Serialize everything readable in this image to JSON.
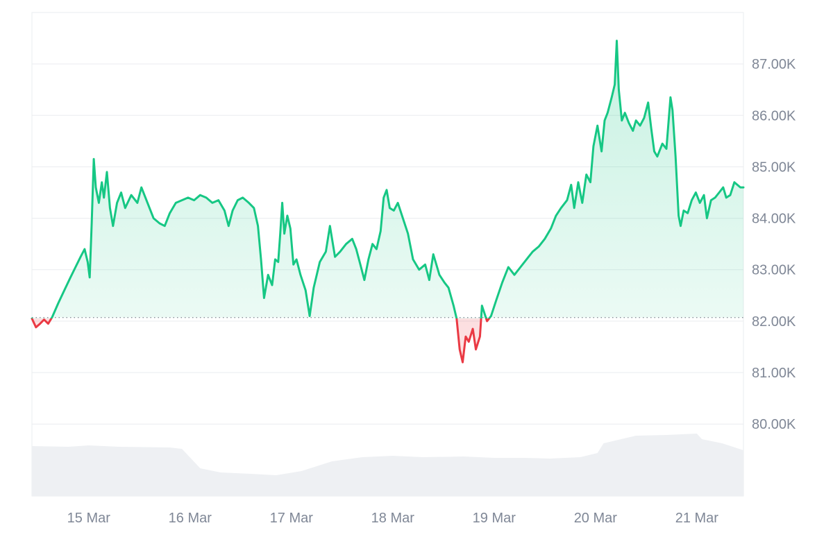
{
  "chart_data": {
    "type": "area",
    "title": "",
    "xlabel": "",
    "ylabel": "",
    "x_tick_labels": [
      "15 Mar",
      "16 Mar",
      "17 Mar",
      "18 Mar",
      "19 Mar",
      "20 Mar",
      "21 Mar"
    ],
    "y_tick_labels": [
      "80.00K",
      "81.00K",
      "82.00K",
      "83.00K",
      "84.00K",
      "85.00K",
      "86.00K",
      "87.00K"
    ],
    "y_ticks": [
      80000,
      81000,
      82000,
      83000,
      84000,
      85000,
      86000,
      87000
    ],
    "ylim": [
      78600,
      88000
    ],
    "xlim": [
      14.44,
      21.46
    ],
    "baseline": 82070,
    "grid": true,
    "colors": {
      "up_line": "#16c784",
      "down_line": "#ea3943",
      "up_fill": "#16c784",
      "down_fill": "#ea3943",
      "volume_fill": "#eef0f3",
      "grid": "#eaecef",
      "baseline_dots": "#8a8f99"
    },
    "series": [
      {
        "values": [
          [
            14.44,
            82050
          ],
          [
            14.48,
            81880
          ],
          [
            14.52,
            81950
          ],
          [
            14.56,
            82030
          ],
          [
            14.6,
            81950
          ],
          [
            14.64,
            82080
          ],
          [
            14.7,
            82350
          ],
          [
            14.76,
            82600
          ],
          [
            14.82,
            82850
          ],
          [
            14.87,
            83050
          ],
          [
            14.92,
            83250
          ],
          [
            14.96,
            83400
          ],
          [
            14.99,
            83150
          ],
          [
            15.01,
            82850
          ],
          [
            15.03,
            83900
          ],
          [
            15.05,
            85150
          ],
          [
            15.07,
            84600
          ],
          [
            15.1,
            84300
          ],
          [
            15.13,
            84700
          ],
          [
            15.15,
            84400
          ],
          [
            15.18,
            84900
          ],
          [
            15.21,
            84200
          ],
          [
            15.24,
            83850
          ],
          [
            15.28,
            84300
          ],
          [
            15.32,
            84500
          ],
          [
            15.36,
            84200
          ],
          [
            15.42,
            84450
          ],
          [
            15.48,
            84300
          ],
          [
            15.52,
            84600
          ],
          [
            15.58,
            84300
          ],
          [
            15.64,
            84000
          ],
          [
            15.7,
            83900
          ],
          [
            15.75,
            83850
          ],
          [
            15.8,
            84100
          ],
          [
            15.86,
            84300
          ],
          [
            15.92,
            84350
          ],
          [
            15.98,
            84400
          ],
          [
            16.04,
            84350
          ],
          [
            16.1,
            84450
          ],
          [
            16.16,
            84400
          ],
          [
            16.22,
            84300
          ],
          [
            16.28,
            84350
          ],
          [
            16.34,
            84150
          ],
          [
            16.38,
            83850
          ],
          [
            16.42,
            84150
          ],
          [
            16.47,
            84350
          ],
          [
            16.52,
            84400
          ],
          [
            16.58,
            84300
          ],
          [
            16.63,
            84200
          ],
          [
            16.67,
            83850
          ],
          [
            16.7,
            83200
          ],
          [
            16.73,
            82450
          ],
          [
            16.77,
            82900
          ],
          [
            16.81,
            82700
          ],
          [
            16.84,
            83200
          ],
          [
            16.87,
            83150
          ],
          [
            16.89,
            83700
          ],
          [
            16.91,
            84300
          ],
          [
            16.93,
            83700
          ],
          [
            16.96,
            84050
          ],
          [
            16.99,
            83800
          ],
          [
            17.02,
            83100
          ],
          [
            17.05,
            83200
          ],
          [
            17.09,
            82900
          ],
          [
            17.14,
            82600
          ],
          [
            17.18,
            82100
          ],
          [
            17.22,
            82650
          ],
          [
            17.28,
            83150
          ],
          [
            17.34,
            83350
          ],
          [
            17.38,
            83850
          ],
          [
            17.43,
            83250
          ],
          [
            17.48,
            83350
          ],
          [
            17.54,
            83500
          ],
          [
            17.6,
            83600
          ],
          [
            17.64,
            83400
          ],
          [
            17.68,
            83100
          ],
          [
            17.72,
            82800
          ],
          [
            17.76,
            83200
          ],
          [
            17.8,
            83500
          ],
          [
            17.84,
            83400
          ],
          [
            17.88,
            83750
          ],
          [
            17.91,
            84400
          ],
          [
            17.94,
            84550
          ],
          [
            17.97,
            84200
          ],
          [
            18.01,
            84150
          ],
          [
            18.05,
            84300
          ],
          [
            18.1,
            84000
          ],
          [
            18.15,
            83700
          ],
          [
            18.2,
            83200
          ],
          [
            18.26,
            83000
          ],
          [
            18.32,
            83100
          ],
          [
            18.36,
            82800
          ],
          [
            18.4,
            83300
          ],
          [
            18.46,
            82900
          ],
          [
            18.51,
            82750
          ],
          [
            18.55,
            82650
          ],
          [
            18.6,
            82300
          ],
          [
            18.63,
            82050
          ],
          [
            18.66,
            81450
          ],
          [
            18.69,
            81200
          ],
          [
            18.72,
            81700
          ],
          [
            18.75,
            81600
          ],
          [
            18.79,
            81850
          ],
          [
            18.82,
            81450
          ],
          [
            18.86,
            81700
          ],
          [
            18.88,
            82300
          ],
          [
            18.93,
            82000
          ],
          [
            18.97,
            82100
          ],
          [
            19.02,
            82400
          ],
          [
            19.08,
            82750
          ],
          [
            19.14,
            83050
          ],
          [
            19.2,
            82900
          ],
          [
            19.26,
            83050
          ],
          [
            19.32,
            83200
          ],
          [
            19.38,
            83350
          ],
          [
            19.44,
            83450
          ],
          [
            19.5,
            83600
          ],
          [
            19.56,
            83800
          ],
          [
            19.61,
            84050
          ],
          [
            19.66,
            84200
          ],
          [
            19.72,
            84350
          ],
          [
            19.76,
            84650
          ],
          [
            19.79,
            84200
          ],
          [
            19.83,
            84700
          ],
          [
            19.87,
            84300
          ],
          [
            19.91,
            84850
          ],
          [
            19.95,
            84700
          ],
          [
            19.98,
            85400
          ],
          [
            20.02,
            85800
          ],
          [
            20.06,
            85300
          ],
          [
            20.09,
            85900
          ],
          [
            20.12,
            86050
          ],
          [
            20.16,
            86350
          ],
          [
            20.19,
            86600
          ],
          [
            20.21,
            87450
          ],
          [
            20.23,
            86500
          ],
          [
            20.26,
            85900
          ],
          [
            20.29,
            86050
          ],
          [
            20.33,
            85850
          ],
          [
            20.37,
            85700
          ],
          [
            20.4,
            85900
          ],
          [
            20.44,
            85800
          ],
          [
            20.48,
            85950
          ],
          [
            20.52,
            86250
          ],
          [
            20.55,
            85750
          ],
          [
            20.58,
            85300
          ],
          [
            20.61,
            85200
          ],
          [
            20.63,
            85300
          ],
          [
            20.66,
            85450
          ],
          [
            20.7,
            85350
          ],
          [
            20.74,
            86350
          ],
          [
            20.76,
            86100
          ],
          [
            20.79,
            85200
          ],
          [
            20.82,
            84050
          ],
          [
            20.84,
            83850
          ],
          [
            20.87,
            84150
          ],
          [
            20.91,
            84100
          ],
          [
            20.95,
            84350
          ],
          [
            20.99,
            84500
          ],
          [
            21.03,
            84300
          ],
          [
            21.07,
            84450
          ],
          [
            21.1,
            84000
          ],
          [
            21.14,
            84350
          ],
          [
            21.18,
            84400
          ],
          [
            21.22,
            84500
          ],
          [
            21.26,
            84600
          ],
          [
            21.29,
            84400
          ],
          [
            21.33,
            84450
          ],
          [
            21.37,
            84700
          ],
          [
            21.4,
            84650
          ],
          [
            21.43,
            84600
          ],
          [
            21.46,
            84600
          ]
        ]
      }
    ],
    "volume": [
      [
        14.44,
        0.72
      ],
      [
        14.8,
        0.71
      ],
      [
        15.0,
        0.73
      ],
      [
        15.3,
        0.71
      ],
      [
        15.8,
        0.7
      ],
      [
        15.92,
        0.68
      ],
      [
        16.1,
        0.4
      ],
      [
        16.3,
        0.34
      ],
      [
        16.6,
        0.32
      ],
      [
        16.85,
        0.3
      ],
      [
        17.1,
        0.36
      ],
      [
        17.4,
        0.5
      ],
      [
        17.7,
        0.56
      ],
      [
        18.0,
        0.58
      ],
      [
        18.3,
        0.56
      ],
      [
        18.7,
        0.57
      ],
      [
        19.0,
        0.55
      ],
      [
        19.3,
        0.55
      ],
      [
        19.55,
        0.54
      ],
      [
        19.85,
        0.56
      ],
      [
        20.02,
        0.62
      ],
      [
        20.08,
        0.76
      ],
      [
        20.4,
        0.87
      ],
      [
        20.7,
        0.88
      ],
      [
        21.0,
        0.9
      ],
      [
        21.05,
        0.82
      ],
      [
        21.25,
        0.76
      ],
      [
        21.46,
        0.66
      ]
    ]
  }
}
